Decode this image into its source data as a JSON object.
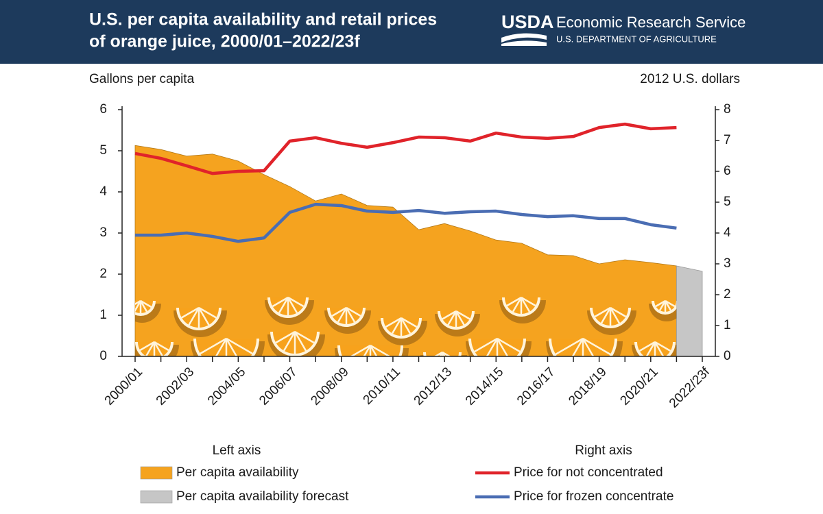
{
  "header": {
    "logo": "USDA",
    "agency": "Economic Research Service",
    "department": "U.S. DEPARTMENT OF AGRICULTURE"
  },
  "chart_data": {
    "type": "area-line",
    "title": [
      "U.S. per capita availability and retail prices",
      "of orange juice, 2000/01–2022/23f"
    ],
    "y_label": "Gallons per capita",
    "y2_label": "2012 U.S. dollars",
    "categories": [
      "2000/01",
      null,
      "2002/03",
      null,
      "2004/05",
      null,
      "2006/07",
      null,
      "2008/09",
      null,
      "2010/11",
      null,
      "2012/13",
      null,
      "2014/15",
      null,
      "2016/17",
      null,
      "2018/19",
      null,
      "2020/21",
      null,
      "2022/23f"
    ],
    "ylim": [
      0,
      6
    ],
    "yticks": [
      0,
      1,
      2,
      3,
      4,
      5,
      6
    ],
    "y2lim": [
      0,
      8
    ],
    "y2ticks": [
      0,
      1,
      2,
      3,
      4,
      5,
      6,
      7,
      8
    ],
    "legend_titles": {
      "y": "Left axis",
      "y2": "Right axis"
    },
    "series": [
      {
        "name": "Per capita availability",
        "kind": "area",
        "axis": "y",
        "color": "#f5a31f",
        "values": [
          5.13,
          5.03,
          4.87,
          4.92,
          4.75,
          4.42,
          4.13,
          3.78,
          3.95,
          3.67,
          3.63,
          3.08,
          3.23,
          3.05,
          2.83,
          2.75,
          2.47,
          2.45,
          2.25,
          2.35,
          2.28,
          2.2,
          null
        ]
      },
      {
        "name": "Per capita availability forecast",
        "kind": "area",
        "axis": "y",
        "color": "#c6c6c6",
        "values": [
          null,
          null,
          null,
          null,
          null,
          null,
          null,
          null,
          null,
          null,
          null,
          null,
          null,
          null,
          null,
          null,
          null,
          null,
          null,
          null,
          null,
          2.2,
          2.07
        ]
      },
      {
        "name": "Price for not concentrated",
        "kind": "line",
        "axis": "y2",
        "color": "#e0232a",
        "values": [
          6.58,
          6.42,
          6.18,
          5.93,
          6.0,
          6.02,
          6.98,
          7.09,
          6.91,
          6.78,
          6.93,
          7.11,
          7.09,
          6.98,
          7.24,
          7.11,
          7.07,
          7.13,
          7.42,
          7.53,
          7.38,
          7.42,
          null
        ]
      },
      {
        "name": "Price for frozen concentrate",
        "kind": "line",
        "axis": "y2",
        "color": "#4a6db3",
        "values": [
          3.93,
          3.93,
          4.0,
          3.89,
          3.73,
          3.84,
          4.67,
          4.93,
          4.89,
          4.71,
          4.67,
          4.73,
          4.64,
          4.69,
          4.71,
          4.6,
          4.53,
          4.56,
          4.47,
          4.47,
          4.27,
          4.16,
          null
        ]
      }
    ]
  }
}
